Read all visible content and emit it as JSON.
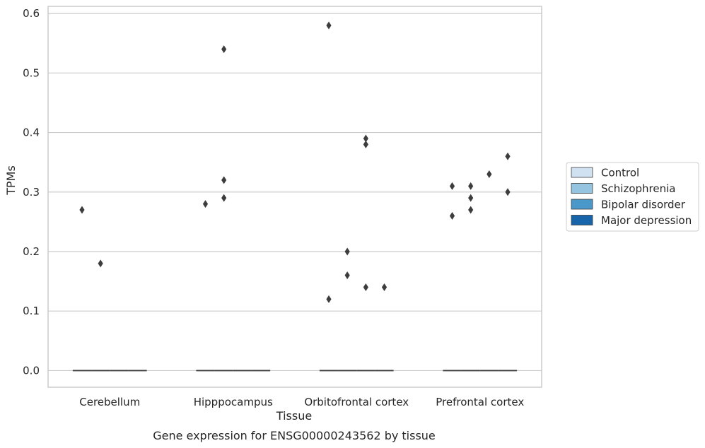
{
  "chart_data": {
    "type": "boxplot",
    "title": "",
    "caption": "Gene expression for ENSG00000243562 by tissue",
    "xlabel": "Tissue",
    "ylabel": "TPMs",
    "ylim": [
      -0.028,
      0.612
    ],
    "yticks": [
      0.0,
      0.1,
      0.2,
      0.3,
      0.4,
      0.5,
      0.6
    ],
    "ytick_labels": [
      "0.0",
      "0.1",
      "0.2",
      "0.3",
      "0.4",
      "0.5",
      "0.6"
    ],
    "grid": "horizontal",
    "legend_position": "outside-right",
    "categories": [
      "Cerebellum",
      "Hipppocampus",
      "Orbitofrontal cortex",
      "Prefrontal cortex"
    ],
    "series": [
      {
        "name": "Control",
        "color": "#d0e1f2",
        "median": [
          0.0,
          0.0,
          0.0,
          0.0
        ],
        "outliers": [
          [
            0.27
          ],
          [
            0.28
          ],
          [
            0.58,
            0.12
          ],
          [
            0.31,
            0.26
          ]
        ]
      },
      {
        "name": "Schizophrenia",
        "color": "#94c4df",
        "median": [
          0.0,
          0.0,
          0.0,
          0.0
        ],
        "outliers": [
          [
            0.18
          ],
          [
            0.54,
            0.32,
            0.29
          ],
          [
            0.2,
            0.16
          ],
          [
            0.31,
            0.29,
            0.27
          ]
        ]
      },
      {
        "name": "Bipolar disorder",
        "color": "#4a98c9",
        "median": [
          0.0,
          0.0,
          0.0,
          0.0
        ],
        "outliers": [
          [],
          [],
          [
            0.39,
            0.38,
            0.14
          ],
          [
            0.33
          ]
        ]
      },
      {
        "name": "Major depression",
        "color": "#1764ab",
        "median": [
          0.0,
          0.0,
          0.0,
          0.0
        ],
        "outliers": [
          [],
          [],
          [
            0.14
          ],
          [
            0.36,
            0.3
          ]
        ]
      }
    ]
  }
}
